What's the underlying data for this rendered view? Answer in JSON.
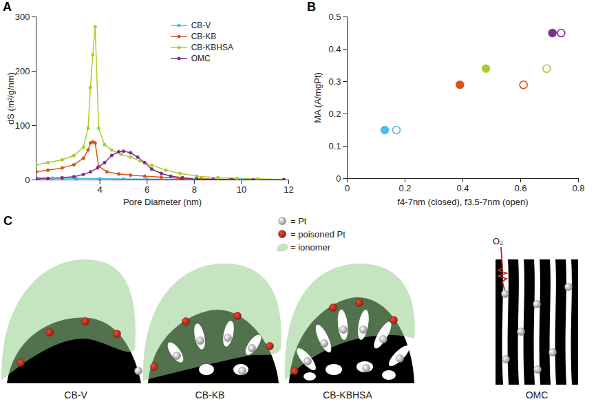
{
  "chart_data": [
    {
      "type": "line",
      "title": "A",
      "xlabel": "Pore Diameter (nm)",
      "ylabel": "dS (m²/g/nm)",
      "xlim": [
        1.3,
        12
      ],
      "xticks": [
        4,
        6,
        8,
        10,
        12
      ],
      "ylim": [
        0,
        300
      ],
      "yticks": [
        0,
        100,
        200,
        300
      ],
      "legend": "top-right",
      "marker": "circle",
      "series": [
        {
          "name": "CB-V",
          "color": "#4dbeee",
          "x": [
            1.3,
            2,
            3,
            4,
            5,
            6,
            8,
            10,
            11.8
          ],
          "values": [
            4,
            3.5,
            3,
            2.5,
            2,
            1.5,
            1,
            0.5,
            0.3
          ]
        },
        {
          "name": "CB-KB",
          "color": "#d95319",
          "x": [
            1.3,
            1.8,
            2.4,
            2.9,
            3.3,
            3.5,
            3.6,
            3.7,
            3.8,
            3.95,
            4.3,
            4.8,
            5.3,
            5.9,
            6.6,
            7.4,
            8.3,
            9.5,
            11.8
          ],
          "values": [
            15,
            18,
            22,
            28,
            40,
            55,
            68,
            70,
            68,
            25,
            15,
            11,
            9,
            7,
            5,
            3,
            2,
            1,
            0.5
          ]
        },
        {
          "name": "CB-KBHSA",
          "color": "#a4d02a",
          "x": [
            1.3,
            1.8,
            2.4,
            2.9,
            3.3,
            3.5,
            3.6,
            3.7,
            3.8,
            3.95,
            4.2,
            4.5,
            4.9,
            5.3,
            5.7,
            6.2,
            6.8,
            7.4,
            8.1,
            9.0,
            9.8,
            10.7,
            11.8
          ],
          "values": [
            28,
            32,
            37,
            45,
            60,
            95,
            170,
            230,
            282,
            95,
            65,
            55,
            47,
            42,
            35,
            27,
            18,
            12,
            7,
            4,
            3,
            2,
            1
          ]
        },
        {
          "name": "OMC",
          "color": "#7e2f8e",
          "x": [
            1.3,
            1.8,
            2.4,
            2.9,
            3.3,
            3.6,
            3.9,
            4.2,
            4.5,
            4.8,
            5.0,
            5.3,
            5.6,
            5.9,
            6.2,
            6.6,
            7.0,
            7.5,
            8.1,
            8.8,
            9.6,
            10.5,
            11.8
          ],
          "values": [
            2,
            3,
            4,
            6,
            10,
            15,
            22,
            32,
            45,
            52,
            53,
            50,
            42,
            32,
            20,
            12,
            7,
            4,
            2,
            1,
            0.5,
            0.3,
            0.2
          ]
        }
      ]
    },
    {
      "type": "scatter",
      "title": "B",
      "xlabel": "f4-7nm (closed), f3.5-7nm (open)",
      "ylabel": "MA (A/mgPt)",
      "xlim": [
        0,
        0.8
      ],
      "xticks": [
        0,
        0.2,
        0.4,
        0.6,
        0.8
      ],
      "ylim": [
        0,
        0.5
      ],
      "yticks": [
        0,
        0.1,
        0.2,
        0.3,
        0.4,
        0.5
      ],
      "series": [
        {
          "marker": "filled",
          "x": [
            0.13,
            0.39,
            0.48,
            0.71
          ],
          "values": [
            0.15,
            0.29,
            0.34,
            0.45
          ],
          "colors": [
            "#4dbeee",
            "#d95319",
            "#a4d02a",
            "#7e2f8e"
          ]
        },
        {
          "marker": "open",
          "x": [
            0.17,
            0.61,
            0.69,
            0.74
          ],
          "values": [
            0.15,
            0.29,
            0.34,
            0.45
          ],
          "colors": [
            "#4dbeee",
            "#d95319",
            "#a4d02a",
            "#7e2f8e"
          ]
        }
      ]
    }
  ],
  "diagram": {
    "title": "C",
    "legend": [
      {
        "label": "= Pt"
      },
      {
        "label": "= poisoned Pt"
      },
      {
        "label": "= ionomer"
      }
    ],
    "panels": [
      {
        "label": "CB-V"
      },
      {
        "label": "CB-KB"
      },
      {
        "label": "CB-KBHSA"
      },
      {
        "label": "OMC",
        "annotation": "O₂"
      }
    ]
  }
}
